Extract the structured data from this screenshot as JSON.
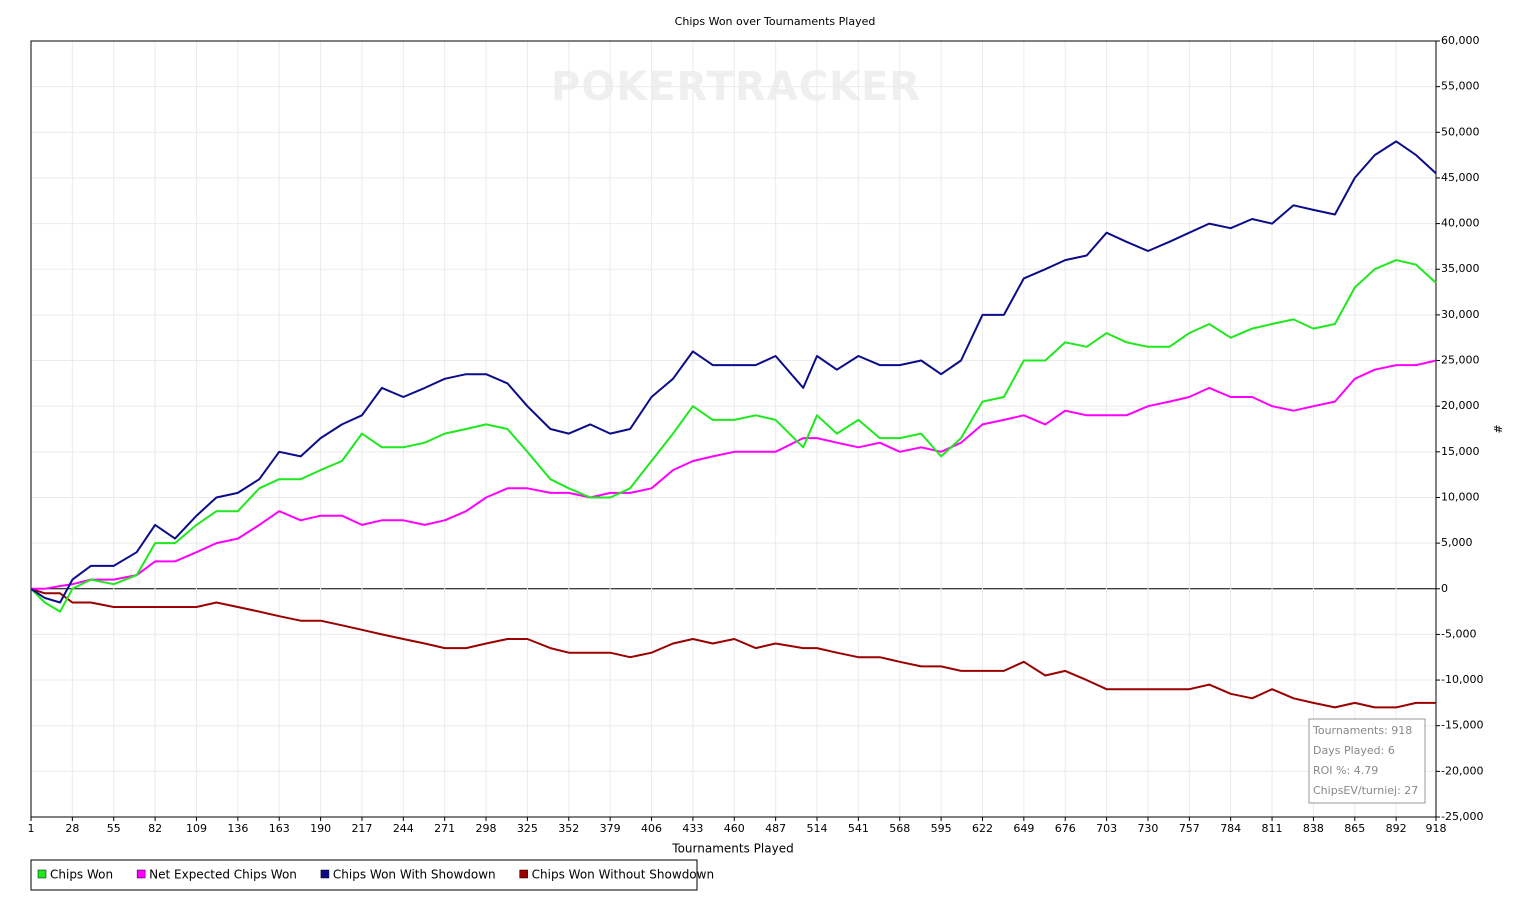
{
  "chart_data": {
    "type": "line",
    "title": "Chips Won over Tournaments Played",
    "watermark": "POKERTRACKER",
    "x_label": "Tournaments Played",
    "y_label": "#",
    "x": [
      1,
      10,
      20,
      28,
      40,
      55,
      70,
      82,
      95,
      109,
      122,
      136,
      150,
      163,
      177,
      190,
      204,
      217,
      230,
      244,
      258,
      271,
      285,
      298,
      312,
      325,
      340,
      352,
      366,
      379,
      392,
      406,
      420,
      433,
      446,
      460,
      474,
      487,
      505,
      514,
      527,
      541,
      555,
      568,
      582,
      595,
      608,
      622,
      636,
      649,
      663,
      676,
      690,
      703,
      716,
      730,
      744,
      757,
      770,
      784,
      798,
      811,
      825,
      838,
      852,
      865,
      878,
      892,
      905,
      918
    ],
    "series": [
      {
        "name": "Chips Won",
        "color": "#1ee81e",
        "values": [
          0,
          -1500,
          -2500,
          0,
          1000,
          500,
          1500,
          5000,
          5000,
          7000,
          8500,
          8500,
          11000,
          12000,
          12000,
          13000,
          14000,
          17000,
          15500,
          15500,
          16000,
          17000,
          17500,
          18000,
          17500,
          15000,
          12000,
          11000,
          10000,
          10000,
          11000,
          14000,
          17000,
          20000,
          18500,
          18500,
          19000,
          18500,
          15500,
          19000,
          17000,
          18500,
          16500,
          16500,
          17000,
          14500,
          16500,
          20500,
          21000,
          25000,
          25000,
          27000,
          26500,
          28000,
          27000,
          26500,
          26500,
          28000,
          29000,
          27500,
          28500,
          29000,
          29500,
          28500,
          29000,
          33000,
          35000,
          36000,
          35500,
          33500
        ]
      },
      {
        "name": "Net Expected Chips Won",
        "color": "#ff00ff",
        "values": [
          0,
          0,
          300,
          500,
          1000,
          1000,
          1500,
          3000,
          3000,
          4000,
          5000,
          5500,
          7000,
          8500,
          7500,
          8000,
          8000,
          7000,
          7500,
          7500,
          7000,
          7500,
          8500,
          10000,
          11000,
          11000,
          10500,
          10500,
          10000,
          10500,
          10500,
          11000,
          13000,
          14000,
          14500,
          15000,
          15000,
          15000,
          16500,
          16500,
          16000,
          15500,
          16000,
          15000,
          15500,
          15000,
          16000,
          18000,
          18500,
          19000,
          18000,
          19500,
          19000,
          19000,
          19000,
          20000,
          20500,
          21000,
          22000,
          21000,
          21000,
          20000,
          19500,
          20000,
          20500,
          23000,
          24000,
          24500,
          24500,
          25000
        ]
      },
      {
        "name": "Chips Won With Showdown",
        "color": "#0c0c8a",
        "values": [
          0,
          -1000,
          -1500,
          1000,
          2500,
          2500,
          4000,
          7000,
          5500,
          8000,
          10000,
          10500,
          12000,
          15000,
          14500,
          16500,
          18000,
          19000,
          22000,
          21000,
          22000,
          23000,
          23500,
          23500,
          22500,
          20000,
          17500,
          17000,
          18000,
          17000,
          17500,
          21000,
          23000,
          26000,
          24500,
          24500,
          24500,
          25500,
          22000,
          25500,
          24000,
          25500,
          24500,
          24500,
          25000,
          23500,
          25000,
          30000,
          30000,
          34000,
          35000,
          36000,
          36500,
          39000,
          38000,
          37000,
          38000,
          39000,
          40000,
          39500,
          40500,
          40000,
          42000,
          41500,
          41000,
          45000,
          47500,
          49000,
          47500,
          45500
        ]
      },
      {
        "name": "Chips Won Without Showdown",
        "color": "#9a0000",
        "values": [
          0,
          -500,
          -500,
          -1500,
          -1500,
          -2000,
          -2000,
          -2000,
          -2000,
          -2000,
          -1500,
          -2000,
          -2500,
          -3000,
          -3500,
          -3500,
          -4000,
          -4500,
          -5000,
          -5500,
          -6000,
          -6500,
          -6500,
          -6000,
          -5500,
          -5500,
          -6500,
          -7000,
          -7000,
          -7000,
          -7500,
          -7000,
          -6000,
          -5500,
          -6000,
          -5500,
          -6500,
          -6000,
          -6500,
          -6500,
          -7000,
          -7500,
          -7500,
          -8000,
          -8500,
          -8500,
          -9000,
          -9000,
          -9000,
          -8000,
          -9500,
          -9000,
          -10000,
          -11000,
          -11000,
          -11000,
          -11000,
          -11000,
          -10500,
          -11500,
          -12000,
          -11000,
          -12000,
          -12500,
          -13000,
          -12500,
          -13000,
          -13000,
          -12500,
          -12500
        ]
      }
    ],
    "xlim": [
      1,
      918
    ],
    "xticks": [
      1,
      28,
      55,
      82,
      109,
      136,
      163,
      190,
      217,
      244,
      271,
      298,
      325,
      352,
      379,
      406,
      433,
      460,
      487,
      514,
      541,
      568,
      595,
      622,
      649,
      676,
      703,
      730,
      757,
      784,
      811,
      838,
      865,
      892,
      918
    ],
    "ylim": [
      -25000,
      60000
    ],
    "yticks": [
      {
        "value": -25000,
        "label": "-25,000"
      },
      {
        "value": -20000,
        "label": "-20,000"
      },
      {
        "value": -15000,
        "label": "-15,000"
      },
      {
        "value": -10000,
        "label": "-10,000"
      },
      {
        "value": -5000,
        "label": "-5,000"
      },
      0,
      {
        "value": 5000,
        "label": "5,000"
      },
      {
        "value": 10000,
        "label": "10,000"
      },
      {
        "value": 15000,
        "label": "15,000"
      },
      {
        "value": 20000,
        "label": "20,000"
      },
      {
        "value": 25000,
        "label": "25,000"
      },
      {
        "value": 30000,
        "label": "30,000"
      },
      {
        "value": 35000,
        "label": "35,000"
      },
      {
        "value": 40000,
        "label": "40,000"
      },
      {
        "value": 45000,
        "label": "45,000"
      },
      {
        "value": 50000,
        "label": "50,000"
      },
      {
        "value": 55000,
        "label": "55,000"
      },
      {
        "value": 60000,
        "label": "60,000"
      }
    ],
    "grid": true,
    "legend": "bottom-left",
    "info_box": [
      "Tournaments: 918",
      "Days Played: 6",
      "ROI %: 4.79",
      "ChipsEV/turniej: 27"
    ]
  }
}
